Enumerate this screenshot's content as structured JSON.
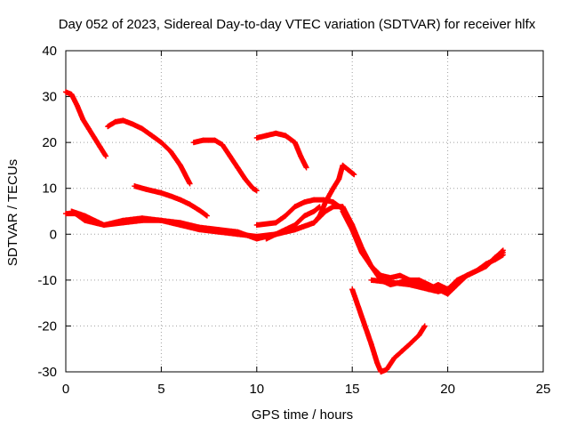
{
  "chart_data": {
    "type": "scatter",
    "title": "Day 052 of 2023, Sidereal Day-to-day VTEC variation (SDTVAR) for receiver hlfx",
    "xlabel": "GPS time / hours",
    "ylabel": "SDTVAR / TECUs",
    "xlim": [
      0,
      25
    ],
    "ylim": [
      -30,
      40
    ],
    "xticks": [
      0,
      5,
      10,
      15,
      20,
      25
    ],
    "yticks": [
      -30,
      -20,
      -10,
      0,
      10,
      20,
      30,
      40
    ],
    "grid": true,
    "marker": "plus",
    "color": "#ff0000",
    "series": [
      {
        "x": [
          0.0,
          0.3,
          0.6,
          0.9,
          1.2,
          1.5,
          1.8,
          2.1
        ],
        "y": [
          31,
          30.5,
          28,
          25,
          23,
          21,
          19,
          17
        ]
      },
      {
        "x": [
          2.2,
          2.6,
          3.0,
          3.5,
          4.0,
          4.5,
          5.0,
          5.5,
          6.0,
          6.5
        ],
        "y": [
          23.5,
          24.5,
          24.8,
          24,
          23,
          21.5,
          20,
          18,
          15,
          11
        ]
      },
      {
        "x": [
          3.6,
          4.2,
          5.0,
          5.5,
          6.0,
          6.5,
          7.0,
          7.4
        ],
        "y": [
          10.5,
          9.8,
          9,
          8.3,
          7.5,
          6.5,
          5.2,
          4
        ]
      },
      {
        "x": [
          6.7,
          7.2,
          7.8,
          8.2,
          8.6,
          9.0,
          9.4,
          9.8,
          10.0
        ],
        "y": [
          20,
          20.5,
          20.5,
          19.5,
          17,
          14.5,
          12,
          10,
          9.5
        ]
      },
      {
        "x": [
          10.0,
          10.5,
          11.0,
          11.5,
          12.0,
          12.3,
          12.6
        ],
        "y": [
          21,
          21.5,
          22,
          21.5,
          20,
          17,
          14.5
        ]
      },
      {
        "x": [
          0.0,
          0.5,
          1.0,
          2.0,
          3.0,
          4.0,
          5.0,
          6.0,
          7.0,
          8.0,
          9.0,
          10.0,
          11.0,
          12.0,
          13.0,
          13.6,
          14.0,
          14.5,
          15.0,
          15.5,
          16.0,
          16.5,
          17.0,
          17.5,
          18.0,
          18.5,
          19.0,
          19.5,
          20.0,
          20.5,
          21.0,
          21.5,
          22.0,
          22.5,
          22.9
        ],
        "y": [
          4.5,
          4.5,
          3,
          2,
          2.5,
          3,
          3,
          2.5,
          1.5,
          1,
          0.5,
          -1,
          0,
          1,
          2.5,
          5,
          6,
          6,
          2,
          -3,
          -7,
          -10,
          -11,
          -10.5,
          -10,
          -10,
          -11,
          -12,
          -13,
          -11,
          -9,
          -8,
          -7,
          -5,
          -4
        ]
      },
      {
        "x": [
          0.3,
          1.0,
          2.0,
          3.0,
          4.0,
          5.0,
          6.0,
          7.0,
          8.0,
          9.0,
          10.0,
          11.0,
          12.0,
          12.5,
          13.0,
          13.3
        ],
        "y": [
          5,
          4,
          2,
          3,
          3.5,
          3,
          2,
          1,
          0.5,
          0,
          -0.5,
          0,
          2,
          4,
          5,
          6
        ]
      },
      {
        "x": [
          10.0,
          11.0,
          11.5,
          12.0,
          12.5,
          13.0,
          13.5,
          14.0,
          14.5,
          15.0
        ],
        "y": [
          2,
          2.5,
          4,
          6,
          7,
          7.5,
          7.5,
          7,
          5.5,
          2
        ]
      },
      {
        "x": [
          10.5,
          11.0,
          12.0,
          13.0,
          13.3,
          13.6,
          14.0,
          14.3,
          14.5,
          14.8,
          15.1
        ],
        "y": [
          -1,
          0,
          1,
          2.5,
          4,
          7,
          10,
          12,
          15,
          14,
          13
        ]
      },
      {
        "x": [
          15.0,
          15.5,
          16.0,
          16.3,
          16.5,
          16.8,
          17.2,
          17.6,
          18.0,
          18.5,
          18.8
        ],
        "y": [
          -12,
          -18,
          -24,
          -28,
          -30,
          -29.5,
          -27,
          -25.5,
          -24,
          -22,
          -20
        ]
      },
      {
        "x": [
          14.5,
          15.0,
          15.5,
          16.0,
          16.5,
          17.0,
          17.5,
          18.0,
          18.5,
          19.0,
          19.5,
          20.0,
          20.5,
          21.0,
          21.5,
          22.0,
          22.5,
          22.9
        ],
        "y": [
          5,
          1,
          -4,
          -7,
          -9,
          -9.5,
          -9,
          -10,
          -11,
          -12,
          -11,
          -12,
          -10.5,
          -9,
          -8,
          -6.5,
          -5.5,
          -4.5
        ]
      },
      {
        "x": [
          16.0,
          17.0,
          18.0,
          19.0,
          19.5,
          20.0,
          20.5,
          21.0,
          22.0,
          22.9
        ],
        "y": [
          -10,
          -10.5,
          -11,
          -12,
          -12.5,
          -12,
          -10,
          -9,
          -7,
          -3.5
        ]
      }
    ]
  }
}
